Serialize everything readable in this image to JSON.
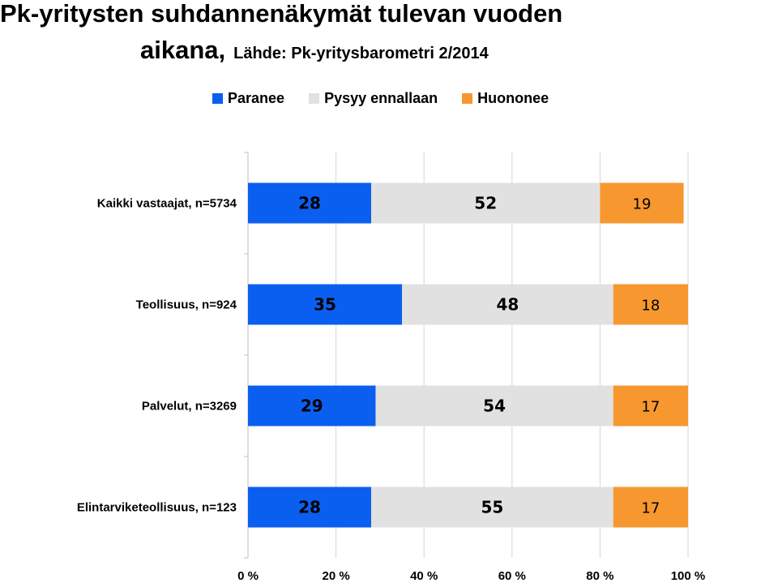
{
  "title": {
    "line1": "Pk-yritysten suhdannenäkymät tulevan vuoden",
    "line2": "aikana,",
    "source": "Lähde: Pk-yritysbarometri 2/2014"
  },
  "legend": [
    {
      "label": "Paranee",
      "color": "#0b5ff0"
    },
    {
      "label": "Pysyy ennallaan",
      "color": "#e1e1e1"
    },
    {
      "label": "Huononee",
      "color": "#f7972f"
    }
  ],
  "chart_data": {
    "type": "bar",
    "orientation": "horizontal",
    "stacked": true,
    "categories": [
      "Kaikki vastaajat, n=5734",
      "Teollisuus, n=924",
      "Palvelut, n=3269",
      "Elintarviketeollisuus, n=123"
    ],
    "series": [
      {
        "name": "Paranee",
        "color": "#0b5ff0",
        "values": [
          28,
          35,
          29,
          28
        ]
      },
      {
        "name": "Pysyy ennallaan",
        "color": "#e1e1e1",
        "values": [
          52,
          48,
          54,
          55
        ]
      },
      {
        "name": "Huononee",
        "color": "#f7972f",
        "values": [
          19,
          18,
          17,
          17
        ]
      }
    ],
    "xlim": [
      0,
      100
    ],
    "xticks": [
      "0 %",
      "20 %",
      "40 %",
      "60 %",
      "80 %",
      "100 %"
    ],
    "grid": true,
    "legend_position": "top"
  }
}
